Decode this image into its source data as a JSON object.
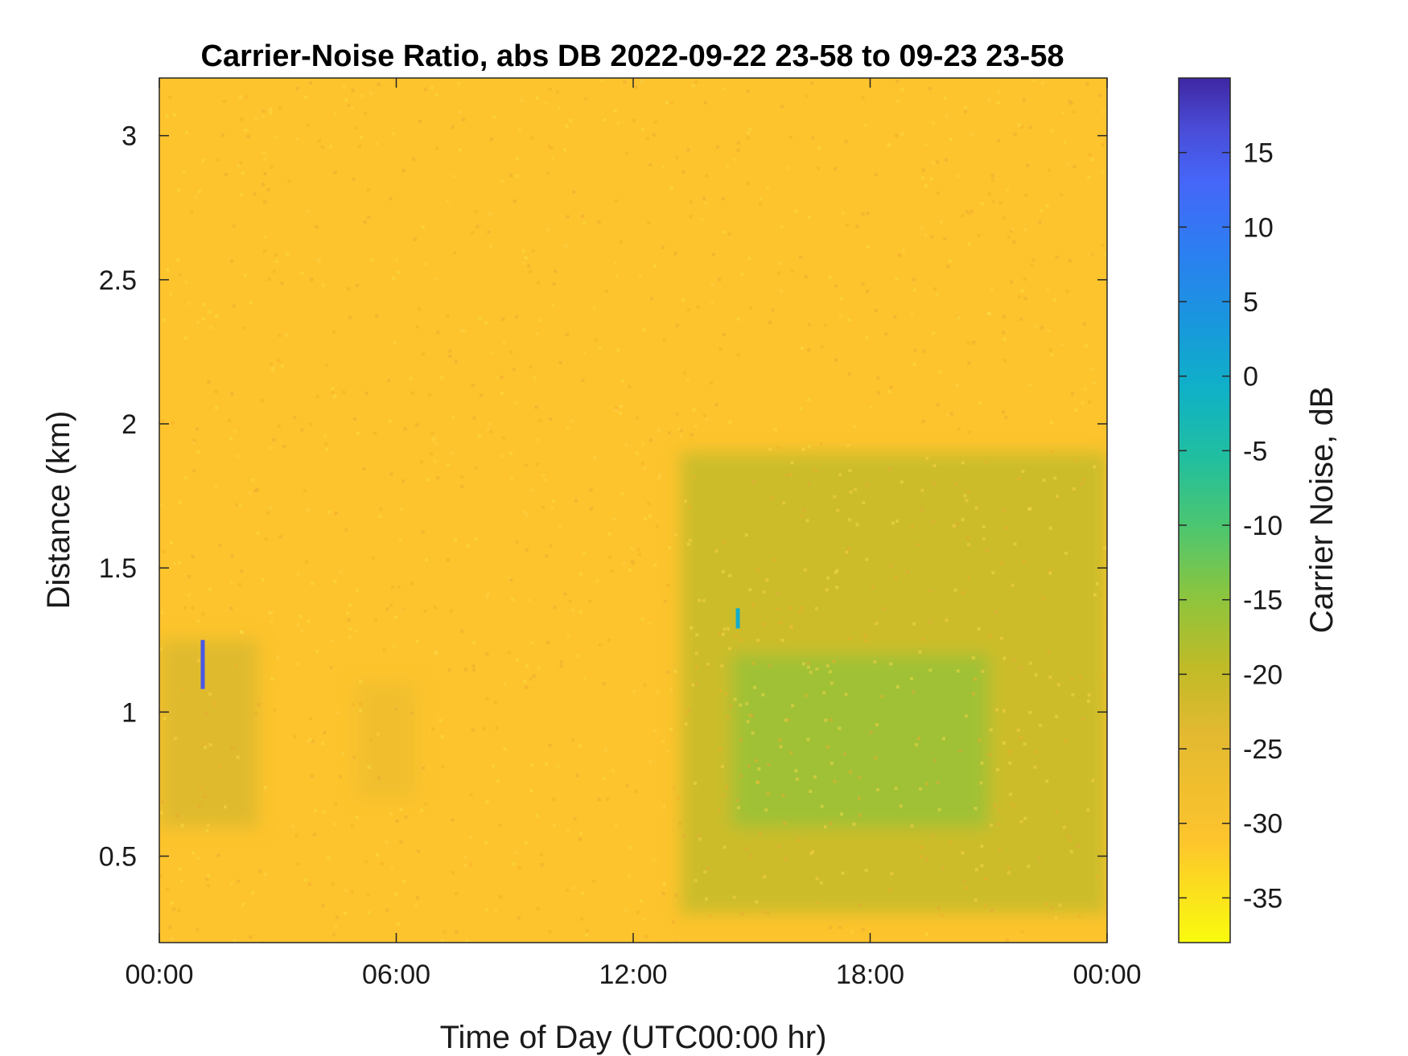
{
  "chart_data": {
    "type": "heatmap",
    "title": "Carrier-Noise Ratio, abs DB 2022-09-22 23-58 to 09-23 23-58",
    "xlabel": "Time of Day (UTC00:00 hr)",
    "ylabel": "Distance (km)",
    "x_range_hours": [
      0,
      24
    ],
    "y_range_km": [
      0.2,
      3.2
    ],
    "x_ticks": [
      {
        "value": 0,
        "label": "00:00"
      },
      {
        "value": 6,
        "label": "06:00"
      },
      {
        "value": 12,
        "label": "12:00"
      },
      {
        "value": 18,
        "label": "18:00"
      },
      {
        "value": 24,
        "label": "00:00"
      }
    ],
    "y_ticks": [
      {
        "value": 0.5,
        "label": "0.5"
      },
      {
        "value": 1,
        "label": "1"
      },
      {
        "value": 1.5,
        "label": "1.5"
      },
      {
        "value": 2,
        "label": "2"
      },
      {
        "value": 2.5,
        "label": "2.5"
      },
      {
        "value": 3,
        "label": "3"
      }
    ],
    "colorbar": {
      "label": "Carrier Noise, dB",
      "range": [
        -38,
        20
      ],
      "ticks": [
        {
          "value": 15,
          "label": "15"
        },
        {
          "value": 10,
          "label": "10"
        },
        {
          "value": 5,
          "label": "5"
        },
        {
          "value": 0,
          "label": "0"
        },
        {
          "value": -5,
          "label": "-5"
        },
        {
          "value": -10,
          "label": "-10"
        },
        {
          "value": -15,
          "label": "-15"
        },
        {
          "value": -20,
          "label": "-20"
        },
        {
          "value": -25,
          "label": "-25"
        },
        {
          "value": -30,
          "label": "-30"
        },
        {
          "value": -35,
          "label": "-35"
        }
      ],
      "colormap": "parula-reversed"
    },
    "background_value_db": -31,
    "features": [
      {
        "kind": "region",
        "x_range_hours": [
          0,
          2.5
        ],
        "y_range_km": [
          0.6,
          1.25
        ],
        "value_db": -23
      },
      {
        "kind": "region",
        "x_range_hours": [
          5,
          6.5
        ],
        "y_range_km": [
          0.7,
          1.1
        ],
        "value_db": -27
      },
      {
        "kind": "region",
        "x_range_hours": [
          13.2,
          24
        ],
        "y_range_km": [
          0.3,
          1.9
        ],
        "value_db": -20
      },
      {
        "kind": "region",
        "x_range_hours": [
          14.5,
          21
        ],
        "y_range_km": [
          0.6,
          1.2
        ],
        "value_db": -16
      },
      {
        "kind": "spike",
        "x_hours": 1.1,
        "y_range_km": [
          1.08,
          1.25
        ],
        "value_db": 15
      },
      {
        "kind": "spike",
        "x_hours": 14.65,
        "y_range_km": [
          1.29,
          1.36
        ],
        "value_db": 0
      }
    ]
  }
}
